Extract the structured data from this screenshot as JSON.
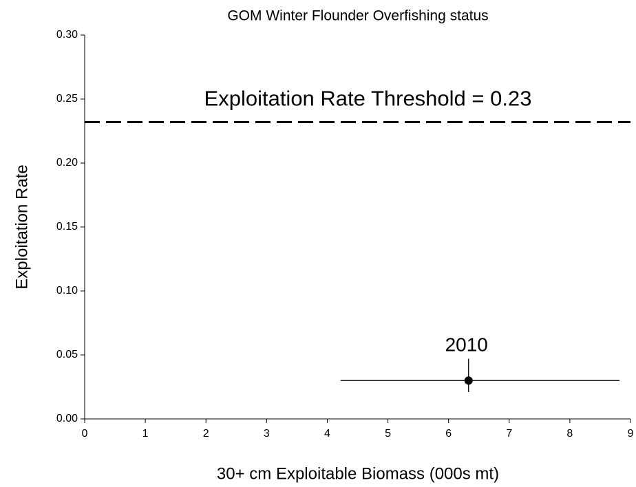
{
  "chart_data": {
    "type": "scatter",
    "title": "GOM Winter Flounder Overfishing status",
    "x_label": "30+ cm Exploitable Biomass (000s mt)",
    "y_label": "Exploitation Rate",
    "x": [
      6.33
    ],
    "values": [
      0.03
    ],
    "labels": [
      "2010"
    ],
    "x_lower": [
      4.22
    ],
    "x_upper": [
      8.82
    ],
    "y_lower": [
      0.021
    ],
    "y_upper": [
      0.047
    ],
    "color": "#000000",
    "hline": {
      "value": 0.232,
      "label": "Exploitation Rate Threshold = 0.23"
    },
    "xlim": [
      0,
      9
    ],
    "xticks": [
      0,
      1,
      2,
      3,
      4,
      5,
      6,
      7,
      8,
      9
    ],
    "ylim": [
      0,
      0.3
    ],
    "yticks": [
      {
        "value": 0,
        "label": "0.00"
      },
      {
        "value": 0.05,
        "label": "0.05"
      },
      {
        "value": 0.1,
        "label": "0.10"
      },
      {
        "value": 0.15,
        "label": "0.15"
      },
      {
        "value": 0.2,
        "label": "0.20"
      },
      {
        "value": 0.25,
        "label": "0.25"
      },
      {
        "value": 0.3,
        "label": "0.30"
      }
    ]
  }
}
